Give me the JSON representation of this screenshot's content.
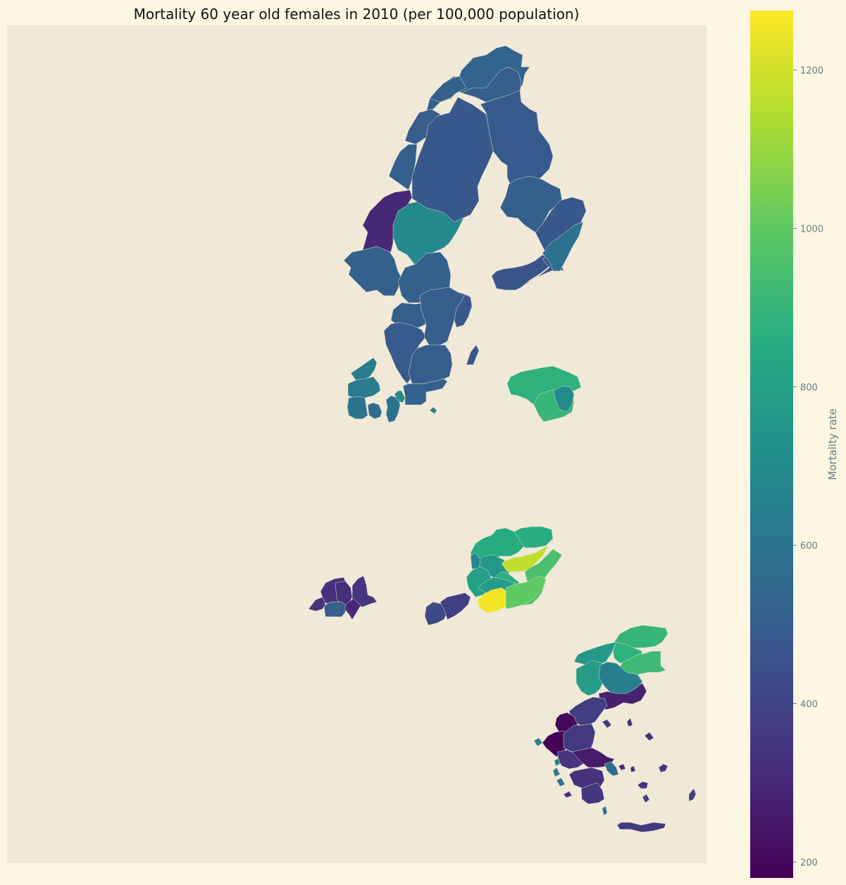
{
  "chart_data": {
    "type": "choropleth",
    "title": "Mortality 60 year old females in 2010 (per 100,000 population)",
    "colorbar": {
      "label": "Mortality rate",
      "range": [
        180,
        1275
      ],
      "ticks": [
        200,
        400,
        600,
        800,
        1000,
        1200
      ],
      "colormap": "viridis"
    },
    "map_background": "#f0e9d7",
    "page_background": "#fdf6e3",
    "regions": [
      {
        "group": "Norway",
        "value": 530
      },
      {
        "group": "Norway",
        "value": 520
      },
      {
        "group": "Norway",
        "value": 500
      },
      {
        "group": "Norway",
        "value": 690
      },
      {
        "group": "Norway",
        "value": 510
      },
      {
        "group": "Norway",
        "value": 520
      },
      {
        "group": "Norway",
        "value": 515
      },
      {
        "group": "Norway",
        "value": 500
      },
      {
        "group": "Norway",
        "value": 300
      },
      {
        "group": "Sweden",
        "value": 480
      },
      {
        "group": "Sweden",
        "value": 520
      },
      {
        "group": "Sweden",
        "value": 500
      },
      {
        "group": "Sweden",
        "value": 490
      },
      {
        "group": "Sweden",
        "value": 510
      },
      {
        "group": "Sweden",
        "value": 480
      },
      {
        "group": "Sweden",
        "value": 470
      },
      {
        "group": "Sweden",
        "value": 480
      },
      {
        "group": "Sweden",
        "value": 590
      },
      {
        "group": "Sweden",
        "value": 480
      },
      {
        "group": "Finland",
        "value": 490
      },
      {
        "group": "Finland",
        "value": 500
      },
      {
        "group": "Finland",
        "value": 500
      },
      {
        "group": "Finland",
        "value": 520
      },
      {
        "group": "Finland",
        "value": 480
      },
      {
        "group": "Denmark",
        "value": 640
      },
      {
        "group": "Denmark",
        "value": 630
      },
      {
        "group": "Denmark",
        "value": 600
      },
      {
        "group": "Denmark",
        "value": 560
      },
      {
        "group": "Denmark",
        "value": 590
      },
      {
        "group": "Denmark",
        "value": 700
      },
      {
        "group": "Denmark",
        "value": 650
      },
      {
        "group": "Lithuania",
        "value": 880
      },
      {
        "group": "Lithuania",
        "value": 900
      },
      {
        "group": "Lithuania",
        "value": 700
      },
      {
        "group": "Hungary",
        "value": 850
      },
      {
        "group": "Hungary",
        "value": 860
      },
      {
        "group": "Hungary",
        "value": 760
      },
      {
        "group": "Hungary",
        "value": 680
      },
      {
        "group": "Hungary",
        "value": 1170
      },
      {
        "group": "Hungary",
        "value": 950
      },
      {
        "group": "Hungary",
        "value": 960
      },
      {
        "group": "Hungary",
        "value": 870
      },
      {
        "group": "Hungary",
        "value": 800
      },
      {
        "group": "Hungary",
        "value": 780
      },
      {
        "group": "Hungary",
        "value": 1260
      },
      {
        "group": "Hungary",
        "value": 1000
      },
      {
        "group": "Slovenia",
        "value": 420
      },
      {
        "group": "Slovenia",
        "value": 380
      },
      {
        "group": "Switzerland",
        "value": 330
      },
      {
        "group": "Switzerland",
        "value": 320
      },
      {
        "group": "Switzerland",
        "value": 340
      },
      {
        "group": "Switzerland",
        "value": 500
      },
      {
        "group": "Switzerland",
        "value": 350
      },
      {
        "group": "Switzerland",
        "value": 300
      },
      {
        "group": "Bulgaria",
        "value": 900
      },
      {
        "group": "Bulgaria",
        "value": 880
      },
      {
        "group": "Bulgaria",
        "value": 920
      },
      {
        "group": "Bulgaria",
        "value": 760
      },
      {
        "group": "Bulgaria",
        "value": 780
      },
      {
        "group": "Bulgaria",
        "value": 650
      },
      {
        "group": "Greece",
        "value": 280
      },
      {
        "group": "Greece",
        "value": 380
      },
      {
        "group": "Greece",
        "value": 200
      },
      {
        "group": "Greece",
        "value": 190
      },
      {
        "group": "Greece",
        "value": 360
      },
      {
        "group": "Greece",
        "value": 350
      },
      {
        "group": "Greece",
        "value": 260
      },
      {
        "group": "Greece",
        "value": 570
      },
      {
        "group": "Greece",
        "value": 330
      },
      {
        "group": "Greece",
        "value": 350
      },
      {
        "group": "Greece",
        "value": 360
      },
      {
        "group": "Greece",
        "value": 360
      },
      {
        "group": "Greece",
        "value": 330
      },
      {
        "group": "Greece",
        "value": 640
      },
      {
        "group": "Greece",
        "value": 650
      },
      {
        "group": "Greece",
        "value": 620
      },
      {
        "group": "Greece",
        "value": 600
      },
      {
        "group": "Greece",
        "value": 330
      },
      {
        "group": "Greece",
        "value": 340
      },
      {
        "group": "Greece",
        "value": 360
      },
      {
        "group": "Greece",
        "value": 350
      },
      {
        "group": "Greece",
        "value": 370
      },
      {
        "group": "Greece",
        "value": 380
      },
      {
        "group": "Greece",
        "value": 310
      },
      {
        "group": "Greece",
        "value": 330
      },
      {
        "group": "Greece",
        "value": 600
      }
    ]
  }
}
